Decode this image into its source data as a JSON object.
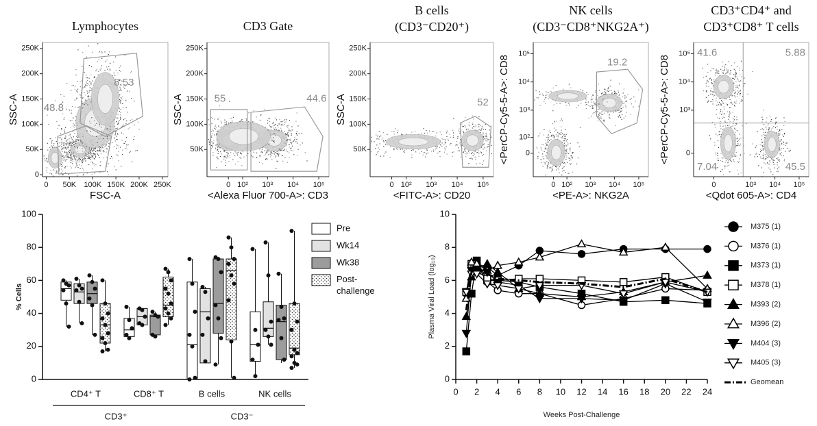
{
  "chart_data": [
    {
      "type": "flow",
      "title": [
        "Lymphocytes"
      ],
      "xlabel": "FSC-A",
      "ylabel": "SSC-A",
      "xscale": "linear",
      "yscale": "linear",
      "xlim": [
        -8000,
        262000
      ],
      "ylim": [
        -4000,
        262000
      ],
      "xticks": [
        0,
        {
          "value": 50000,
          "label": "50K"
        },
        {
          "value": 100000,
          "label": "100K"
        },
        {
          "value": 150000,
          "label": "150K"
        },
        {
          "value": 200000,
          "label": "200K"
        },
        {
          "value": 250000,
          "label": "250K"
        }
      ],
      "yticks": [
        0,
        {
          "value": 50000,
          "label": "50K"
        },
        {
          "value": 100000,
          "label": "100K"
        },
        {
          "value": 150000,
          "label": "150K"
        },
        {
          "value": 200000,
          "label": "200K"
        },
        {
          "value": 250000,
          "label": "250K"
        }
      ],
      "gates": [
        48.8,
        8.53
      ]
    },
    {
      "type": "flow",
      "title": [
        "CD3 Gate"
      ],
      "xlabel": "<Alexa Fluor 700-A>: CD3",
      "ylabel": "SSC-A",
      "xscale": "biexp",
      "yscale": "linear",
      "xlim": [
        -200,
        250000
      ],
      "ylim": [
        -4000,
        262000
      ],
      "xticks": [
        0,
        {
          "value": 100,
          "label": "10²"
        },
        {
          "value": 1000,
          "label": "10³"
        },
        {
          "value": 10000,
          "label": "10⁴"
        },
        {
          "value": 100000,
          "label": "10⁵"
        }
      ],
      "yticks": [
        {
          "value": 50000,
          "label": "50K"
        },
        {
          "value": 100000,
          "label": "100K"
        },
        {
          "value": 150000,
          "label": "150K"
        },
        {
          "value": 200000,
          "label": "200K"
        },
        {
          "value": 250000,
          "label": "250K"
        }
      ],
      "gates": [
        55,
        44.6
      ]
    },
    {
      "type": "flow",
      "title": [
        "B cells",
        "(CD3⁻CD20⁺)"
      ],
      "xlabel": "<FITC-A>: CD20",
      "ylabel": "SSC-A",
      "xscale": "biexp",
      "yscale": "linear",
      "xlim": [
        -200,
        250000
      ],
      "ylim": [
        -4000,
        262000
      ],
      "xticks": [
        0,
        {
          "value": 100,
          "label": "10²"
        },
        {
          "value": 1000,
          "label": "10³"
        },
        {
          "value": 10000,
          "label": "10⁴"
        },
        {
          "value": 100000,
          "label": "10⁵"
        }
      ],
      "yticks": [
        {
          "value": 50000,
          "label": "50K"
        },
        {
          "value": 100000,
          "label": "100K"
        },
        {
          "value": 150000,
          "label": "150K"
        },
        {
          "value": 200000,
          "label": "200K"
        },
        {
          "value": 250000,
          "label": "250K"
        }
      ],
      "gates": [
        52
      ]
    },
    {
      "type": "flow",
      "title": [
        "NK cells",
        "(CD3⁻CD8⁺NKG2A⁺)"
      ],
      "xlabel": "<PE-A>: NKG2A",
      "ylabel": "<PerCP-Cy5-5-A>: CD8",
      "xscale": "biexp",
      "yscale": "biexp",
      "xlim": [
        -200,
        250000
      ],
      "ylim": [
        -200,
        250000
      ],
      "xticks": [
        0,
        {
          "value": 100,
          "label": "10²"
        },
        {
          "value": 1000,
          "label": "10³"
        },
        {
          "value": 10000,
          "label": "10⁴"
        },
        {
          "value": 100000,
          "label": "10⁵"
        }
      ],
      "yticks": [
        0,
        {
          "value": 100,
          "label": "10²"
        },
        {
          "value": 1000,
          "label": "10³"
        },
        {
          "value": 10000,
          "label": "10⁴"
        },
        {
          "value": 100000,
          "label": "10⁵"
        }
      ],
      "gates": [
        19.2
      ]
    },
    {
      "type": "flow",
      "title": [
        "CD3⁺CD4⁺ and",
        "CD3⁺CD8⁺ T cells"
      ],
      "xlabel": "<Qdot 605-A>: CD4",
      "ylabel": "<PerCP-Cy5-5-A>: CD8",
      "xscale": "biexp",
      "yscale": "biexp",
      "xlim": [
        -200,
        250000
      ],
      "ylim": [
        -200,
        250000
      ],
      "xticks": [
        0,
        {
          "value": 1000,
          "label": "10³"
        },
        {
          "value": 10000,
          "label": "10⁴"
        },
        {
          "value": 100000,
          "label": "10⁵"
        }
      ],
      "yticks": [
        0,
        {
          "value": 1000,
          "label": "10³"
        },
        {
          "value": 10000,
          "label": "10⁴"
        },
        {
          "value": 100000,
          "label": "10⁵"
        }
      ],
      "gates": [
        41.6,
        5.88,
        7.04,
        45.5
      ]
    },
    {
      "type": "box",
      "ylabel": "% Cells",
      "ylim": [
        0,
        100
      ],
      "yticks": [
        0,
        20,
        40,
        60,
        80,
        100
      ],
      "categories": [
        "CD4⁺ T",
        "CD8⁺ T",
        "B cells",
        "NK cells"
      ],
      "groups": [
        {
          "label": "CD3⁺",
          "span": 2
        },
        {
          "label": "CD3⁻",
          "span": 2
        }
      ],
      "series": [
        {
          "name": "Pre",
          "color": "#ffffff",
          "boxes": [
            {
              "min": 32,
              "q1": 48,
              "median": 55,
              "q3": 59,
              "max": 60,
              "points": [
                60,
                58,
                57,
                54,
                46,
                32
              ]
            },
            {
              "min": 25,
              "q1": 26,
              "median": 30,
              "q3": 37,
              "max": 44,
              "points": [
                44,
                36,
                31,
                27,
                25
              ]
            },
            {
              "min": 0,
              "q1": 0,
              "median": 21,
              "q3": 59,
              "max": 73,
              "points": [
                73,
                58,
                41,
                27,
                20,
                1,
                0
              ]
            },
            {
              "min": 2,
              "q1": 11,
              "median": 21,
              "q3": 41,
              "max": 79,
              "points": [
                79,
                30,
                21,
                12,
                2
              ]
            }
          ]
        },
        {
          "name": "Wk14",
          "color": "#e2e2e2",
          "boxes": [
            {
              "min": 34,
              "q1": 46,
              "median": 53,
              "q3": 58,
              "max": 61,
              "points": [
                61,
                57,
                55,
                54,
                47,
                34
              ]
            },
            {
              "min": 33,
              "q1": 33,
              "median": 38,
              "q3": 43,
              "max": 43,
              "points": [
                43,
                42,
                38,
                34,
                33
              ]
            },
            {
              "min": 10,
              "q1": 10,
              "median": 41,
              "q3": 55,
              "max": 56,
              "points": [
                56,
                53,
                37,
                27,
                11
              ]
            },
            {
              "min": 21,
              "q1": 26,
              "median": 31,
              "q3": 47,
              "max": 83,
              "points": [
                83,
                63,
                35,
                30,
                26,
                21
              ]
            }
          ]
        },
        {
          "name": "Wk38",
          "color": "#9c9c9c",
          "boxes": [
            {
              "min": 27,
              "q1": 46,
              "median": 52,
              "q3": 59,
              "max": 63,
              "points": [
                63,
                59,
                55,
                49,
                45,
                27
              ]
            },
            {
              "min": 26,
              "q1": 27,
              "median": 38,
              "q3": 39,
              "max": 41,
              "points": [
                41,
                39,
                38,
                27,
                26
              ]
            },
            {
              "min": 9,
              "q1": 28,
              "median": 46,
              "q3": 73,
              "max": 74,
              "points": [
                74,
                73,
                65,
                45,
                37,
                25,
                9
              ]
            },
            {
              "min": 10,
              "q1": 12,
              "median": 35,
              "q3": 45,
              "max": 64,
              "points": [
                64,
                44,
                37,
                36,
                25,
                12
              ]
            }
          ]
        },
        {
          "name": "Post-challenge",
          "color": "#ffffff",
          "pattern": "dots",
          "boxes": [
            {
              "min": 17,
              "q1": 22,
              "median": 33,
              "q3": 46,
              "max": 60,
              "points": [
                60,
                46,
                40,
                37,
                33,
                28,
                25,
                22,
                18,
                17
              ]
            },
            {
              "min": 33,
              "q1": 38,
              "median": 45,
              "q3": 62,
              "max": 67,
              "points": [
                67,
                65,
                60,
                55,
                52,
                46,
                43,
                40,
                37,
                33
              ]
            },
            {
              "min": 1,
              "q1": 24,
              "median": 66,
              "q3": 73,
              "max": 86,
              "points": [
                86,
                80,
                73,
                70,
                63,
                58,
                48,
                23,
                1
              ]
            },
            {
              "min": 7,
              "q1": 15,
              "median": 19,
              "q3": 46,
              "max": 90,
              "points": [
                90,
                46,
                35,
                30,
                18,
                16,
                14,
                10,
                9,
                7
              ]
            }
          ]
        }
      ]
    },
    {
      "type": "line",
      "xlabel": "Weeks Post-Challenge",
      "ylabel": "Plasma Viral Load (log₁₀)",
      "xlim": [
        0,
        24
      ],
      "ylim": [
        0,
        10
      ],
      "xticks": [
        0,
        2,
        4,
        6,
        8,
        10,
        12,
        14,
        16,
        18,
        20,
        22,
        24
      ],
      "yticks": [
        0,
        2,
        4,
        6,
        8,
        10
      ],
      "x": [
        1,
        1.5,
        2,
        3,
        4,
        6,
        8,
        12,
        16,
        20,
        24
      ],
      "series": [
        {
          "name": "M375 (1)",
          "color": "#000000",
          "marker": "circle",
          "filled": true,
          "values": [
            5.3,
            6.9,
            7.0,
            6.8,
            6.3,
            6.9,
            7.8,
            7.6,
            7.9,
            7.9,
            7.9
          ]
        },
        {
          "name": "M376 (1)",
          "color": "#000000",
          "marker": "circle",
          "filled": false,
          "values": [
            5.2,
            6.8,
            7.0,
            5.9,
            5.4,
            5.2,
            5.2,
            4.5,
            4.9,
            5.5,
            5.4
          ]
        },
        {
          "name": "M373 (1)",
          "color": "#000000",
          "marker": "square",
          "filled": true,
          "values": [
            1.7,
            5.2,
            7.2,
            6.0,
            6.0,
            5.9,
            5.6,
            5.2,
            4.7,
            4.8,
            4.6
          ]
        },
        {
          "name": "M378 (1)",
          "color": "#000000",
          "marker": "square",
          "filled": false,
          "values": [
            5.3,
            7.0,
            6.6,
            6.1,
            6.0,
            6.1,
            6.1,
            6.0,
            5.9,
            6.2,
            5.3
          ]
        },
        {
          "name": "M393 (2)",
          "color": "#000000",
          "marker": "triangle-up",
          "filled": true,
          "values": [
            3.8,
            6.2,
            6.7,
            7.0,
            6.5,
            5.5,
            5.2,
            5.0,
            5.3,
            5.9,
            6.3
          ]
        },
        {
          "name": "M396 (2)",
          "color": "#000000",
          "marker": "triangle-up",
          "filled": false,
          "values": [
            4.9,
            7.1,
            7.0,
            6.6,
            6.9,
            7.1,
            7.4,
            8.2,
            7.7,
            8.0,
            5.5
          ]
        },
        {
          "name": "M404 (3)",
          "color": "#000000",
          "marker": "triangle-down",
          "filled": true,
          "values": [
            2.8,
            6.6,
            6.7,
            6.5,
            5.9,
            5.7,
            4.9,
            4.9,
            4.8,
            5.8,
            4.7
          ]
        },
        {
          "name": "M405 (3)",
          "color": "#000000",
          "marker": "triangle-down",
          "filled": false,
          "values": [
            5.3,
            6.4,
            6.4,
            5.8,
            5.7,
            5.5,
            5.7,
            5.7,
            5.2,
            5.9,
            5.3
          ]
        },
        {
          "name": "Geomean",
          "color": "#000000",
          "line_style": "dashdot",
          "values": [
            4.2,
            6.5,
            6.8,
            6.4,
            6.1,
            6.0,
            5.9,
            5.8,
            5.6,
            6.1,
            5.3
          ]
        }
      ]
    }
  ]
}
